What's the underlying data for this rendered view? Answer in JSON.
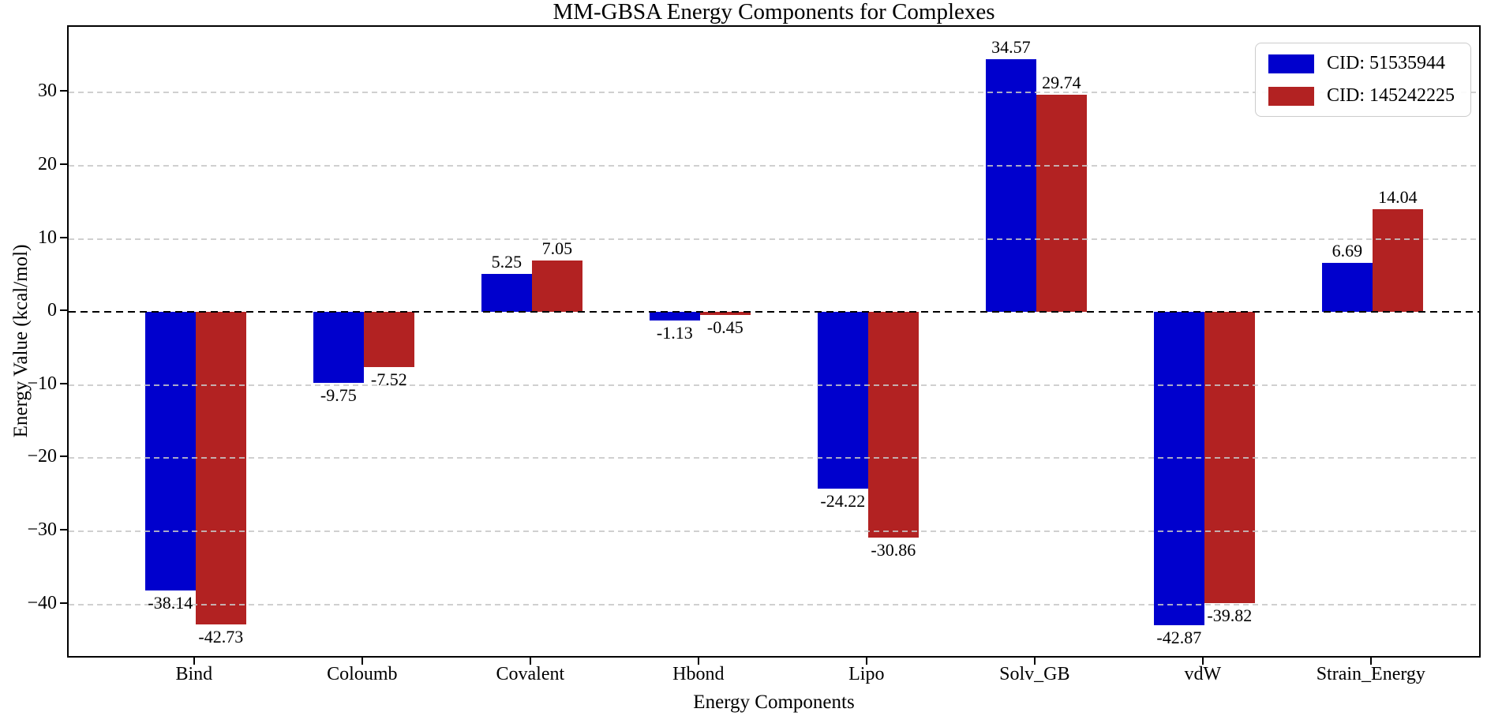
{
  "chart_data": {
    "type": "bar",
    "title": "MM-GBSA Energy Components for Complexes",
    "xlabel": "Energy Components",
    "ylabel": "Energy Value (kcal/mol)",
    "categories": [
      "Bind",
      "Coloumb",
      "Covalent",
      "Hbond",
      "Lipo",
      "Solv_GB",
      "vdW",
      "Strain_Energy"
    ],
    "series": [
      {
        "name": "CID: 51535944",
        "color": "#0000CD",
        "values": [
          -38.14,
          -9.75,
          5.25,
          -1.13,
          -24.22,
          34.57,
          -42.87,
          6.69
        ]
      },
      {
        "name": "CID: 145242225",
        "color": "#B22222",
        "values": [
          -42.73,
          -7.52,
          7.05,
          -0.45,
          -30.86,
          29.74,
          -39.82,
          14.04
        ]
      }
    ],
    "yticks": [
      30,
      20,
      10,
      0,
      -10,
      -20,
      -30,
      -40
    ],
    "ylim": [
      -47.5,
      39.0
    ],
    "grid": "dashed horizontal gridlines drawn over bars",
    "zero_line": "black dashed line at y=0",
    "legend_position": "upper right",
    "colors": {
      "axis": "#000000",
      "grid": "#c7c7c7",
      "background": "#ffffff"
    }
  }
}
